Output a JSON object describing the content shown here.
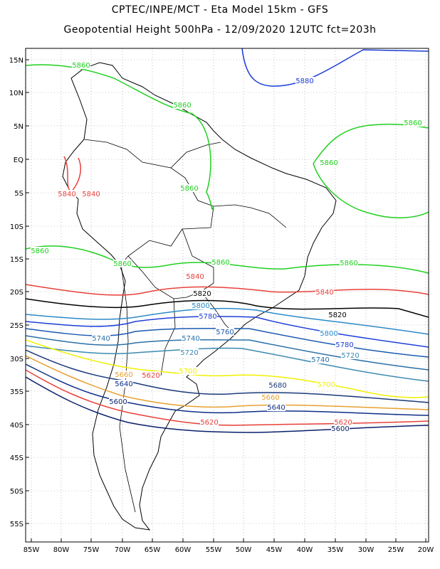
{
  "header": {
    "title_line1": "CPTEC/INPE/MCT  -   Eta Model 15km  -  GFS",
    "title_line2": "Geopotential Height 500hPa  -  12/09/2020 12UTC fct=203h"
  },
  "map": {
    "lon_ticks": [
      "85W",
      "80W",
      "75W",
      "70W",
      "65W",
      "60W",
      "55W",
      "50W",
      "45W",
      "40W",
      "35W",
      "30W",
      "25W",
      "20W"
    ],
    "lat_ticks": [
      "15N",
      "10N",
      "5N",
      "EQ",
      "5S",
      "10S",
      "15S",
      "20S",
      "25S",
      "30S",
      "35S",
      "40S",
      "45S",
      "50S",
      "55S"
    ],
    "contour_colors": {
      "5600": "#0a1f6b",
      "5620": "#e8403a",
      "5640": "#0d2f8a",
      "5660": "#e8a030",
      "5680": "#1a3a7a",
      "5700": "#f0f000",
      "5720": "#3a8ab0",
      "5740": "#2a70a8",
      "5760": "#1a5ab0",
      "5780": "#1f3fd8",
      "5800": "#2a8ac8",
      "5820": "#000000",
      "5840": "#e8403a",
      "5860": "#20d020",
      "5880": "#1a3ad8"
    },
    "contour_labels": [
      {
        "text": "5880",
        "color": "5880"
      },
      {
        "text": "5860",
        "color": "5860"
      },
      {
        "text": "5840",
        "color": "5840"
      },
      {
        "text": "5820",
        "color": "5820"
      },
      {
        "text": "5800",
        "color": "5800"
      },
      {
        "text": "5780",
        "color": "5780"
      },
      {
        "text": "5760",
        "color": "5760"
      },
      {
        "text": "5740",
        "color": "5740"
      },
      {
        "text": "5720",
        "color": "5720"
      },
      {
        "text": "5700",
        "color": "5700"
      },
      {
        "text": "5680",
        "color": "5680"
      },
      {
        "text": "5660",
        "color": "5660"
      },
      {
        "text": "5640",
        "color": "5640"
      },
      {
        "text": "5620",
        "color": "5620"
      },
      {
        "text": "5600",
        "color": "5600"
      }
    ]
  }
}
